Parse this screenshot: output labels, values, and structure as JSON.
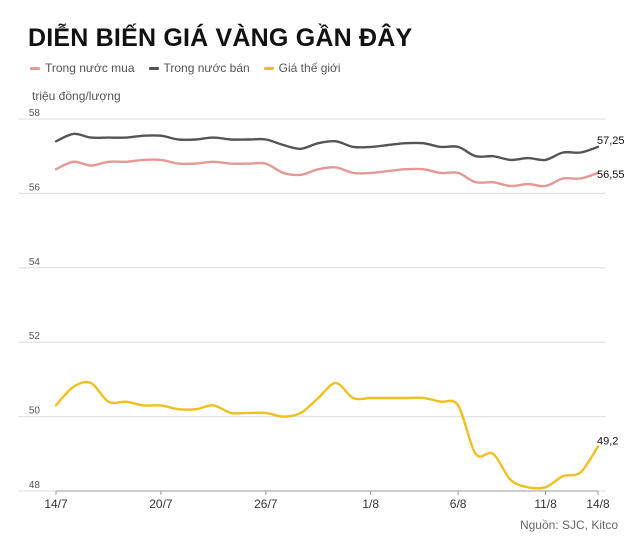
{
  "header": {
    "title": "DIỄN BIẾN GIÁ VÀNG GẦN ĐÂY",
    "unit_label": "triệu đồng/lượng",
    "source": "Nguồn: SJC, Kitco"
  },
  "colors": {
    "buy": "#e59896",
    "sell": "#555555",
    "world": "#f0c020",
    "grid": "#dddddd",
    "tick": "#555555"
  },
  "chart_data": {
    "type": "line",
    "title": "DIỄN BIẾN GIÁ VÀNG GẦN ĐÂY",
    "ylabel": "triệu đồng/lượng",
    "xlabel": "",
    "ylim": [
      48,
      58
    ],
    "yticks": [
      48,
      50,
      52,
      54,
      56,
      58
    ],
    "grid": true,
    "legend_position": "top-left",
    "x": [
      "14/7",
      "15/7",
      "16/7",
      "17/7",
      "18/7",
      "19/7",
      "20/7",
      "21/7",
      "22/7",
      "23/7",
      "24/7",
      "25/7",
      "26/7",
      "27/7",
      "28/7",
      "29/7",
      "30/7",
      "31/7",
      "1/8",
      "2/8",
      "3/8",
      "4/8",
      "5/8",
      "6/8",
      "7/8",
      "8/8",
      "9/8",
      "10/8",
      "11/8",
      "12/8",
      "13/8",
      "14/8"
    ],
    "x_tick_labels": [
      "14/7",
      "20/7",
      "26/7",
      "1/8",
      "6/8",
      "11/8",
      "14/8"
    ],
    "series": [
      {
        "name": "Trong nước mua",
        "color": "#e59896",
        "end_label": "56,55",
        "values": [
          56.65,
          56.85,
          56.75,
          56.85,
          56.85,
          56.9,
          56.9,
          56.8,
          56.8,
          56.85,
          56.8,
          56.8,
          56.8,
          56.55,
          56.5,
          56.65,
          56.7,
          56.55,
          56.55,
          56.6,
          56.65,
          56.65,
          56.55,
          56.55,
          56.3,
          56.3,
          56.2,
          56.25,
          56.2,
          56.4,
          56.4,
          56.55
        ]
      },
      {
        "name": "Trong nước bán",
        "color": "#555555",
        "end_label": "57,25",
        "values": [
          57.4,
          57.6,
          57.5,
          57.5,
          57.5,
          57.55,
          57.55,
          57.45,
          57.45,
          57.5,
          57.45,
          57.45,
          57.45,
          57.3,
          57.2,
          57.35,
          57.4,
          57.25,
          57.25,
          57.3,
          57.35,
          57.35,
          57.25,
          57.25,
          57.0,
          57.0,
          56.9,
          56.95,
          56.9,
          57.1,
          57.1,
          57.25
        ]
      },
      {
        "name": "Giá thế giới",
        "color": "#f0c020",
        "end_label": "49,2",
        "values": [
          50.3,
          50.8,
          50.9,
          50.4,
          50.4,
          50.3,
          50.3,
          50.2,
          50.2,
          50.3,
          50.1,
          50.1,
          50.1,
          50.0,
          50.1,
          50.5,
          50.9,
          50.5,
          50.5,
          50.5,
          50.5,
          50.5,
          50.4,
          50.3,
          49.0,
          49.0,
          48.3,
          48.1,
          48.1,
          48.4,
          48.5,
          49.2
        ]
      }
    ]
  }
}
